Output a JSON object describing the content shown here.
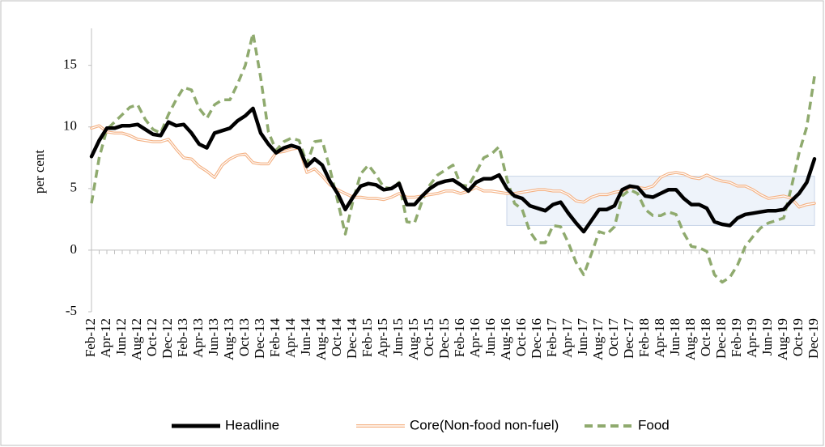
{
  "chart_data": {
    "type": "line",
    "y_label": "per cent",
    "categories": [
      "Feb-12",
      null,
      "Apr-12",
      null,
      "Jun-12",
      null,
      "Aug-12",
      null,
      "Oct-12",
      null,
      "Dec-12",
      null,
      "Feb-13",
      null,
      "Apr-13",
      null,
      "Jun-13",
      null,
      "Aug-13",
      null,
      "Oct-13",
      null,
      "Dec-13",
      null,
      "Feb-14",
      null,
      "Apr-14",
      null,
      "Jun-14",
      null,
      "Aug-14",
      null,
      "Oct-14",
      null,
      "Dec-14",
      null,
      "Feb-15",
      null,
      "Apr-15",
      null,
      "Jun-15",
      null,
      "Aug-15",
      null,
      "Oct-15",
      null,
      "Dec-15",
      null,
      "Feb-16",
      null,
      "Apr-16",
      null,
      "Jun-16",
      null,
      "Aug-16",
      null,
      "Oct-16",
      null,
      "Dec-16",
      null,
      "Feb-17",
      null,
      "Apr-17",
      null,
      "Jun-17",
      null,
      "Aug-17",
      null,
      "Oct-17",
      null,
      "Dec-17",
      null,
      "Feb-18",
      null,
      "Apr-18",
      null,
      "Jun-18",
      null,
      "Aug-18",
      null,
      "Oct-18",
      null,
      "Dec-18",
      null,
      "Feb-19",
      null,
      "Apr-19",
      null,
      "Jun-19",
      null,
      "Aug-19",
      null,
      "Oct-19",
      null,
      "Dec-19"
    ],
    "series": [
      {
        "name": "Headline",
        "color": "#000000",
        "style": "solid",
        "values": [
          7.6,
          8.9,
          9.9,
          9.9,
          10.1,
          10.1,
          10.2,
          9.8,
          9.4,
          9.3,
          10.4,
          10.1,
          10.2,
          9.5,
          8.6,
          8.3,
          9.5,
          9.7,
          9.9,
          10.5,
          10.9,
          11.5,
          9.5,
          8.6,
          7.9,
          8.3,
          8.5,
          8.3,
          6.8,
          7.4,
          6.9,
          5.6,
          4.6,
          3.3,
          4.3,
          5.2,
          5.4,
          5.3,
          4.9,
          5.0,
          5.4,
          3.7,
          3.7,
          4.4,
          5.0,
          5.4,
          5.6,
          5.7,
          5.3,
          4.8,
          5.5,
          5.8,
          5.8,
          6.1,
          5.0,
          4.4,
          4.2,
          3.6,
          3.4,
          3.2,
          3.7,
          3.9,
          3.0,
          2.2,
          1.5,
          2.4,
          3.3,
          3.3,
          3.6,
          4.9,
          5.2,
          5.1,
          4.4,
          4.3,
          4.6,
          4.9,
          4.9,
          4.2,
          3.7,
          3.7,
          3.4,
          2.3,
          2.1,
          2.0,
          2.6,
          2.9,
          3.0,
          3.1,
          3.2,
          3.2,
          3.3,
          4.0,
          4.6,
          5.5,
          7.4
        ]
      },
      {
        "name": "Core(Non-food non-fuel)",
        "color": "#f4b183",
        "style": "double",
        "values": [
          9.9,
          10.1,
          9.6,
          9.5,
          9.5,
          9.3,
          9.0,
          8.9,
          8.8,
          8.8,
          9.0,
          8.2,
          7.5,
          7.4,
          6.8,
          6.4,
          5.9,
          6.9,
          7.4,
          7.7,
          7.8,
          7.1,
          7.0,
          7.0,
          7.9,
          8.0,
          8.2,
          8.3,
          6.3,
          6.6,
          6.0,
          5.3,
          4.9,
          4.6,
          4.3,
          4.3,
          4.2,
          4.2,
          4.1,
          4.3,
          4.6,
          4.3,
          4.3,
          4.4,
          4.5,
          4.6,
          4.8,
          4.8,
          4.6,
          4.8,
          5.1,
          4.8,
          4.8,
          4.7,
          4.6,
          4.6,
          4.7,
          4.8,
          4.9,
          4.9,
          4.8,
          4.8,
          4.5,
          4.0,
          3.9,
          4.3,
          4.5,
          4.5,
          4.7,
          4.8,
          5.1,
          5.1,
          5.0,
          5.2,
          5.9,
          6.2,
          6.3,
          6.2,
          5.9,
          5.8,
          6.1,
          5.8,
          5.6,
          5.5,
          5.2,
          5.2,
          4.9,
          4.5,
          4.2,
          4.3,
          4.4,
          4.2,
          3.5,
          3.7,
          3.8
        ]
      },
      {
        "name": "Food",
        "color": "#8faa6e",
        "style": "dashed",
        "values": [
          3.8,
          7.5,
          9.8,
          10.4,
          11.0,
          11.6,
          11.8,
          10.6,
          9.8,
          9.5,
          11.0,
          12.2,
          13.2,
          13.0,
          11.5,
          10.7,
          11.8,
          12.2,
          12.2,
          13.5,
          15.0,
          17.6,
          14.0,
          9.6,
          8.1,
          8.8,
          9.1,
          8.9,
          7.0,
          8.8,
          8.9,
          6.6,
          4.0,
          1.3,
          4.0,
          6.2,
          6.9,
          6.1,
          5.1,
          5.0,
          5.5,
          2.3,
          2.2,
          4.0,
          5.3,
          6.1,
          6.5,
          6.9,
          5.3,
          5.2,
          6.3,
          7.5,
          7.8,
          8.4,
          5.8,
          3.8,
          3.3,
          1.5,
          0.6,
          0.6,
          2.0,
          1.9,
          0.6,
          -1.0,
          -2.0,
          -0.3,
          1.5,
          1.3,
          1.9,
          4.4,
          4.9,
          4.6,
          3.3,
          2.8,
          2.8,
          3.1,
          2.9,
          1.4,
          0.3,
          0.2,
          -0.1,
          -2.0,
          -2.6,
          -2.2,
          -1.2,
          0.3,
          1.1,
          1.8,
          2.2,
          2.4,
          2.6,
          5.1,
          7.9,
          10.0,
          14.1
        ]
      }
    ],
    "target_band": {
      "from": "Aug-16",
      "to": "Dec-19",
      "ylim": [
        2,
        6
      ],
      "color": "#eef3fa"
    },
    "ylim": [
      -5,
      18
    ],
    "yticks": [
      -5,
      0,
      5,
      10,
      15
    ],
    "grid": false,
    "legend": "bottom"
  }
}
